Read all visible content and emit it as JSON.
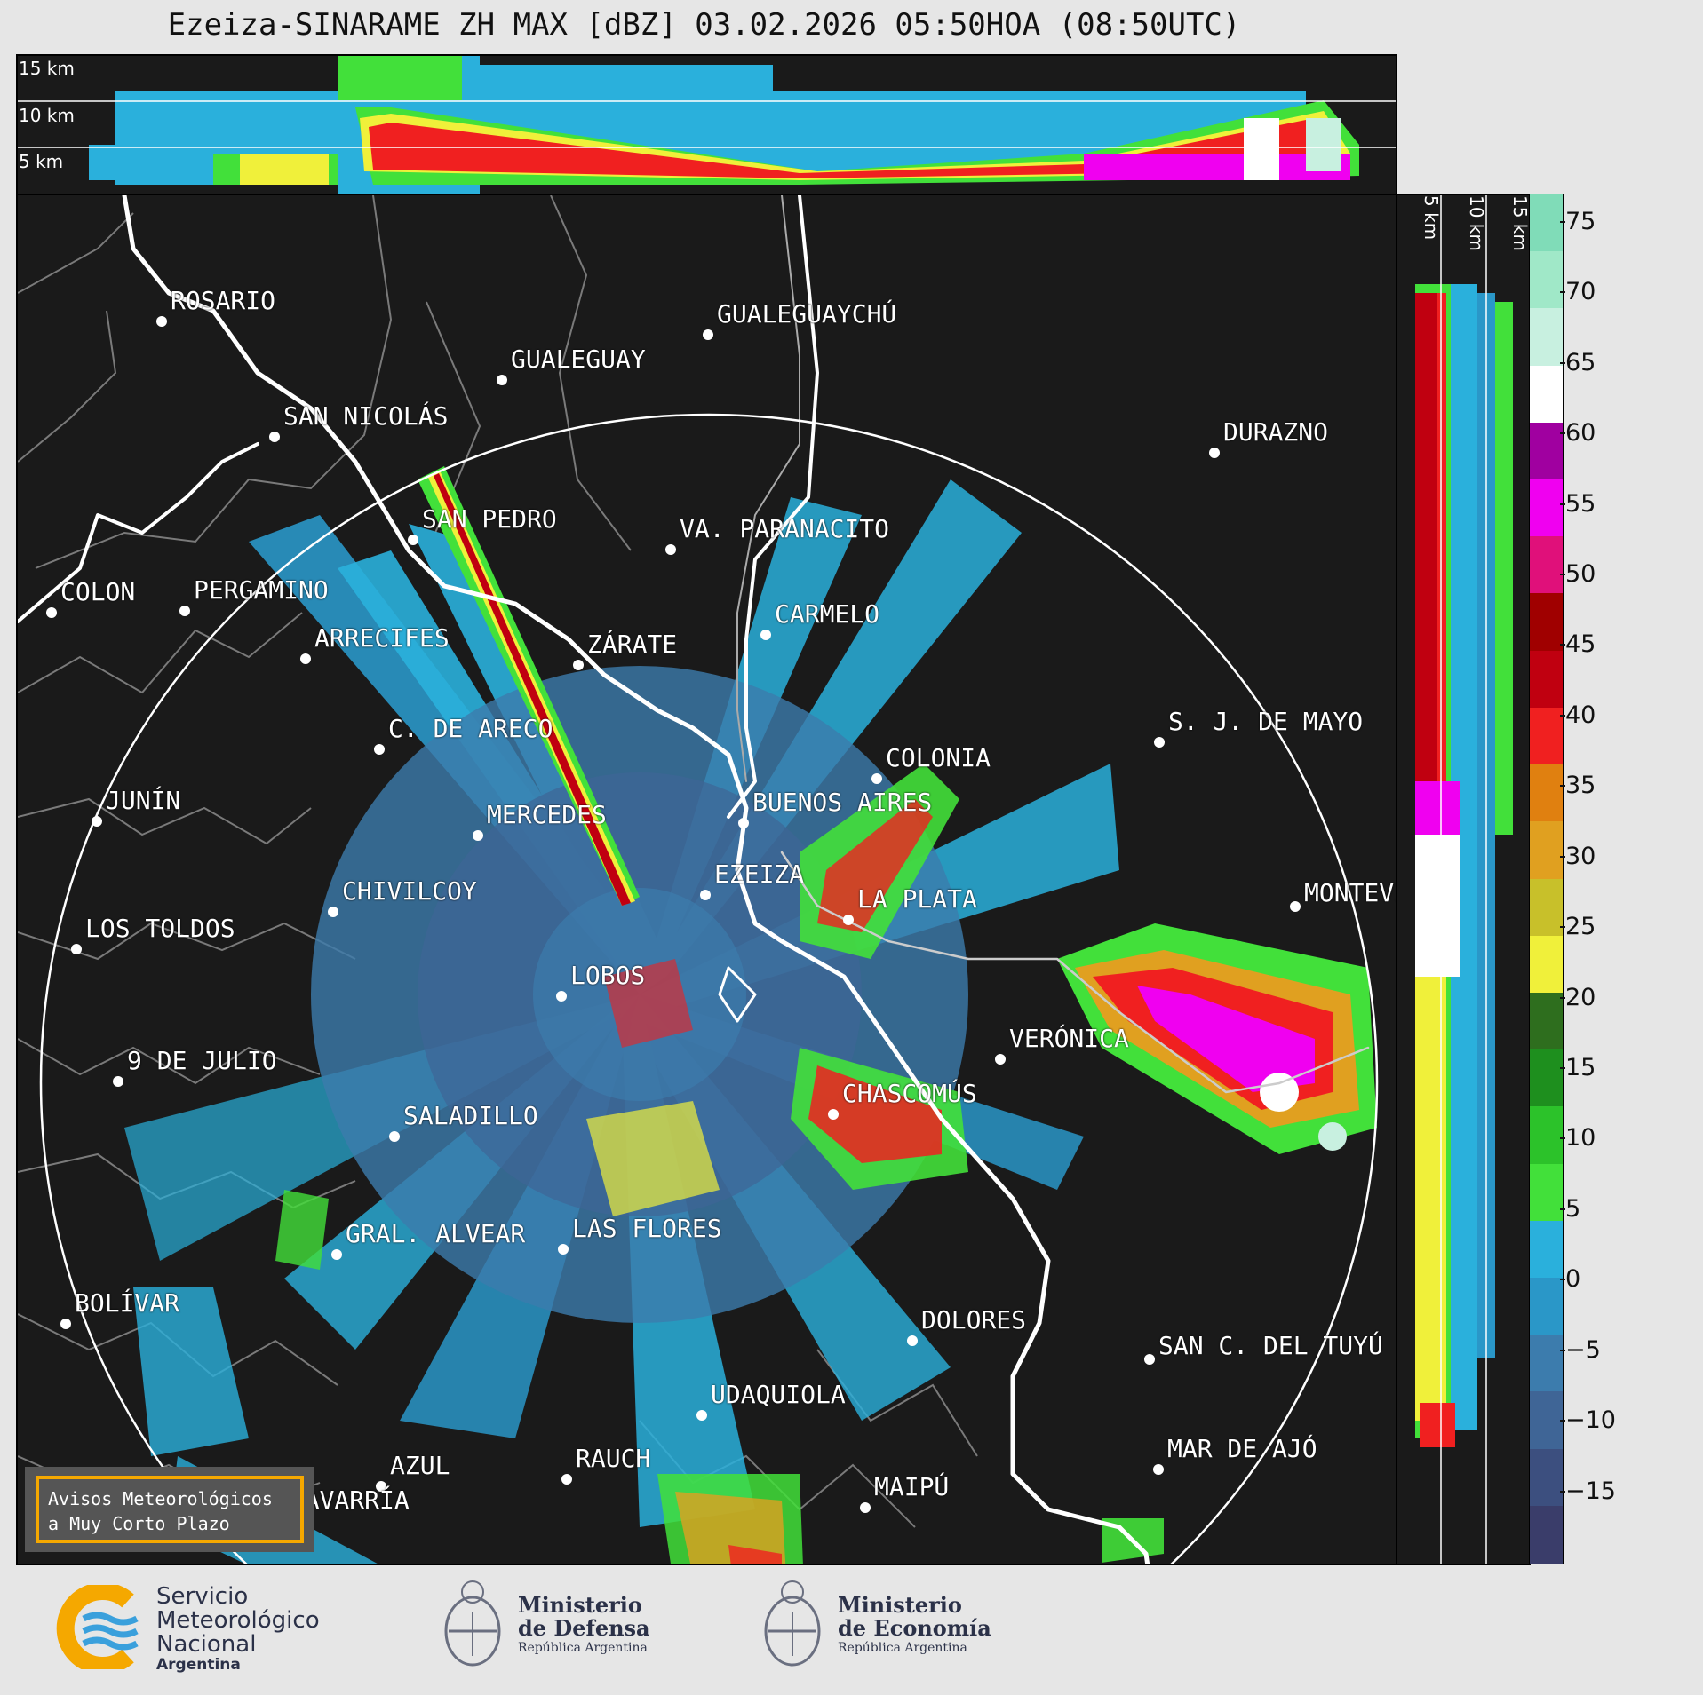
{
  "title": "Ezeiza-SINARAME ZH MAX [dBZ] 03.02.2026 05:50HOA (08:50UTC)",
  "top_panel": {
    "height_labels": [
      "15 km",
      "10 km",
      "5 km"
    ]
  },
  "side_panel": {
    "height_labels": [
      "5 km",
      "10 km",
      "15 km"
    ]
  },
  "colorbar": {
    "ticks": [
      "75",
      "70",
      "65",
      "60",
      "55",
      "50",
      "45",
      "40",
      "35",
      "30",
      "25",
      "20",
      "15",
      "10",
      "5",
      "0",
      "−5",
      "−10",
      "−15"
    ],
    "min": -20,
    "max": 77,
    "colors": [
      "#3a3d6a",
      "#3c4f7f",
      "#3f6596",
      "#3c7cad",
      "#2a97c8",
      "#2ab0dc",
      "#42e03a",
      "#2cc22a",
      "#1e8f1e",
      "#2e6e1e",
      "#f0f03a",
      "#c8c02a",
      "#e0a020",
      "#e08010",
      "#f02020",
      "#c00010",
      "#a00000",
      "#e0107a",
      "#f000f0",
      "#a000a0",
      "#ffffff",
      "#c8f0e0",
      "#a0e8c8",
      "#80dcb8"
    ]
  },
  "cities": [
    {
      "name": "ROSARIO"
    },
    {
      "name": "GUALEGUAYCHÚ"
    },
    {
      "name": "GUALEGUAY"
    },
    {
      "name": "SAN NICOLÁS"
    },
    {
      "name": "DURAZNO"
    },
    {
      "name": "SAN PEDRO"
    },
    {
      "name": "VA. PARANACITO"
    },
    {
      "name": "COLON"
    },
    {
      "name": "PERGAMINO"
    },
    {
      "name": "CARMELO"
    },
    {
      "name": "ARRECIFES"
    },
    {
      "name": "ZÁRATE"
    },
    {
      "name": "S. J. DE MAYO"
    },
    {
      "name": "C. DE ARECO"
    },
    {
      "name": "COLONIA"
    },
    {
      "name": "BUENOS AIRES"
    },
    {
      "name": "JUNÍN"
    },
    {
      "name": "MERCEDES"
    },
    {
      "name": "MONTEVIDEO"
    },
    {
      "name": "EZEIZA"
    },
    {
      "name": "CHIVILCOY"
    },
    {
      "name": "LA PLATA"
    },
    {
      "name": "LOS TOLDOS"
    },
    {
      "name": "LOBOS"
    },
    {
      "name": "VERÓNICA"
    },
    {
      "name": "9 DE JULIO"
    },
    {
      "name": "CHASCOMÚS"
    },
    {
      "name": "SALADILLO"
    },
    {
      "name": "GRAL. ALVEAR"
    },
    {
      "name": "LAS FLORES"
    },
    {
      "name": "DOLORES"
    },
    {
      "name": "BOLÍVAR"
    },
    {
      "name": "SAN C. DEL TUYÚ"
    },
    {
      "name": "UDAQUIOLA"
    },
    {
      "name": "MAR DE AJÓ"
    },
    {
      "name": "AZUL"
    },
    {
      "name": "RAUCH"
    },
    {
      "name": "OLAVARRÍA"
    },
    {
      "name": "MAIPÚ"
    }
  ],
  "avisos": {
    "line1": "Avisos Meteorológicos",
    "line2": "a Muy Corto Plazo"
  },
  "logos": {
    "smn": {
      "line1": "Servicio",
      "line2": "Meteorológico",
      "line3": "Nacional",
      "line4": "Argentina",
      "color": "#f5a800",
      "wave_color": "#3aa0dc"
    },
    "defensa": {
      "line1": "Ministerio",
      "line2": "de Defensa",
      "line3": "República Argentina"
    },
    "economia": {
      "line1": "Ministerio",
      "line2": "de Economía",
      "line3": "República Argentina"
    }
  }
}
